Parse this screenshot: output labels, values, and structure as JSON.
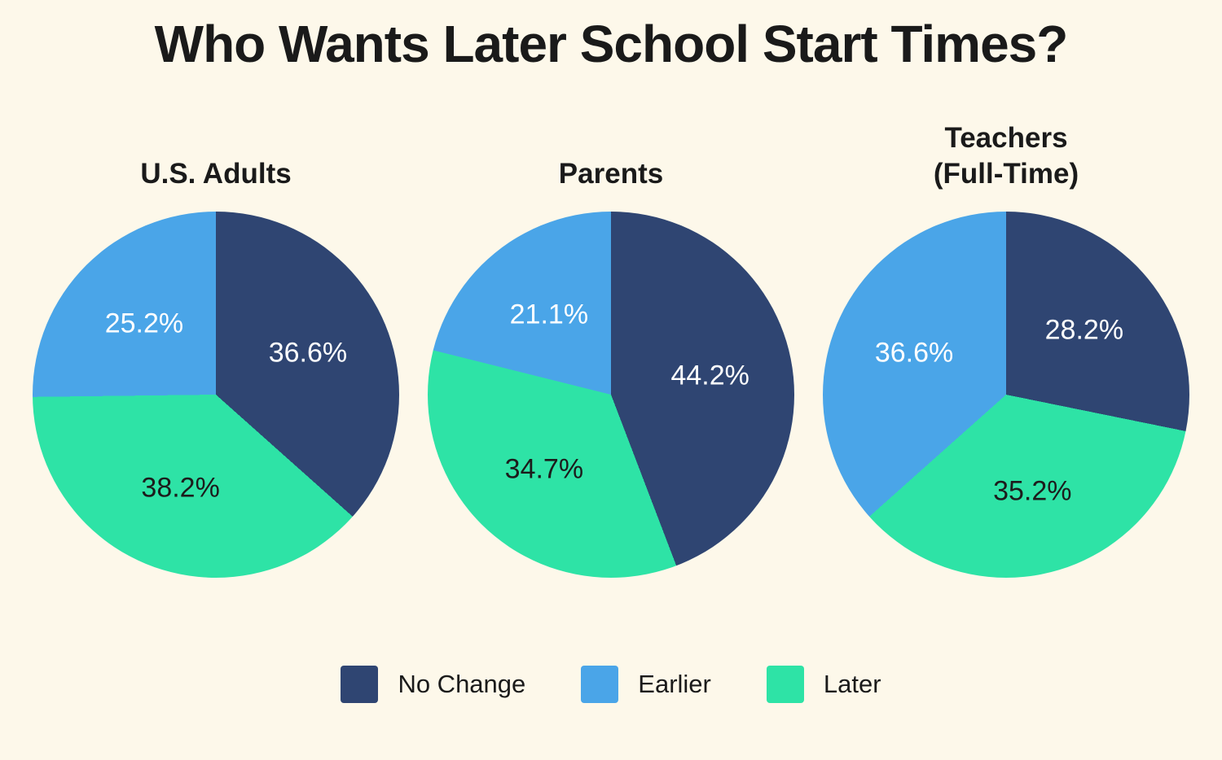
{
  "title": "Who Wants Later School Start Times?",
  "colors": {
    "background": "#fdf8ea",
    "text": "#1a1a1a",
    "no_change": "#2f4572",
    "earlier": "#4aa5e8",
    "later": "#2ee3a6"
  },
  "chart_data": [
    {
      "type": "pie",
      "title": "U.S. Adults",
      "categories": [
        "No Change",
        "Later",
        "Earlier"
      ],
      "segments": [
        {
          "label": "No Change",
          "value": 36.6,
          "display": "36.6%",
          "color": "#2f4572",
          "text_color": "#ffffff"
        },
        {
          "label": "Later",
          "value": 38.2,
          "display": "38.2%",
          "color": "#2ee3a6",
          "text_color": "#1c1c1c"
        },
        {
          "label": "Earlier",
          "value": 25.2,
          "display": "25.2%",
          "color": "#4aa5e8",
          "text_color": "#ffffff"
        }
      ]
    },
    {
      "type": "pie",
      "title": "Parents",
      "categories": [
        "No Change",
        "Later",
        "Earlier"
      ],
      "segments": [
        {
          "label": "No Change",
          "value": 44.2,
          "display": "44.2%",
          "color": "#2f4572",
          "text_color": "#ffffff"
        },
        {
          "label": "Later",
          "value": 34.7,
          "display": "34.7%",
          "color": "#2ee3a6",
          "text_color": "#1c1c1c"
        },
        {
          "label": "Earlier",
          "value": 21.1,
          "display": "21.1%",
          "color": "#4aa5e8",
          "text_color": "#ffffff"
        }
      ]
    },
    {
      "type": "pie",
      "title": "Teachers\n(Full-Time)",
      "categories": [
        "No Change",
        "Later",
        "Earlier"
      ],
      "segments": [
        {
          "label": "No Change",
          "value": 28.2,
          "display": "28.2%",
          "color": "#2f4572",
          "text_color": "#ffffff"
        },
        {
          "label": "Later",
          "value": 35.2,
          "display": "35.2%",
          "color": "#2ee3a6",
          "text_color": "#1c1c1c"
        },
        {
          "label": "Earlier",
          "value": 36.6,
          "display": "36.6%",
          "color": "#4aa5e8",
          "text_color": "#ffffff"
        }
      ]
    }
  ],
  "legend": [
    {
      "label": "No Change",
      "color": "#2f4572"
    },
    {
      "label": "Earlier",
      "color": "#4aa5e8"
    },
    {
      "label": "Later",
      "color": "#2ee3a6"
    }
  ]
}
